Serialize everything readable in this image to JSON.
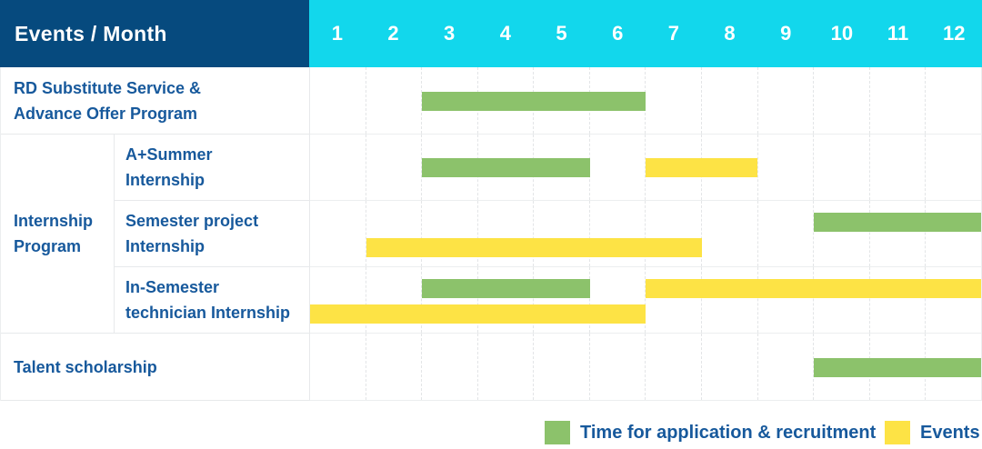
{
  "header": {
    "title": "Events / Month",
    "months": [
      "1",
      "2",
      "3",
      "4",
      "5",
      "6",
      "7",
      "8",
      "9",
      "10",
      "11",
      "12"
    ]
  },
  "colors": {
    "header_navy": "#064a7e",
    "header_cyan": "#12d7ec",
    "recruitment_green": "#8cc26b",
    "events_yellow": "#fde345",
    "label_blue": "#17599c",
    "grid_line": "#e7e9eb"
  },
  "chart_data": {
    "type": "gantt",
    "unit": "month",
    "axis": {
      "min": 1,
      "max": 12,
      "ticks": [
        1,
        2,
        3,
        4,
        5,
        6,
        7,
        8,
        9,
        10,
        11,
        12
      ]
    },
    "group_label_lines": [
      "Internship",
      "Program"
    ],
    "series": {
      "recruitment": {
        "label": "Time for application & recruitment",
        "color": "#8cc26b"
      },
      "events": {
        "label": "Events",
        "color": "#fde345"
      }
    },
    "rows": [
      {
        "group": "",
        "label": "RD Substitute Service & Advance Offer Program",
        "label_lines": [
          "RD Substitute Service &",
          "Advance Offer Program"
        ],
        "bars": [
          {
            "series": "recruitment",
            "start": 3,
            "end": 6,
            "lane": "center"
          }
        ]
      },
      {
        "group": "Internship Program",
        "label": "A+Summer Internship",
        "label_lines": [
          "A+Summer",
          "Internship"
        ],
        "bars": [
          {
            "series": "recruitment",
            "start": 3,
            "end": 5,
            "lane": "center"
          },
          {
            "series": "events",
            "start": 7,
            "end": 8,
            "lane": "center"
          }
        ]
      },
      {
        "group": "Internship Program",
        "label": "Semester project Internship",
        "label_lines": [
          "Semester project",
          "Internship"
        ],
        "bars": [
          {
            "series": "recruitment",
            "start": 10,
            "end": 12,
            "lane": "top"
          },
          {
            "series": "events",
            "start": 2,
            "end": 7,
            "lane": "bottom"
          }
        ]
      },
      {
        "group": "Internship Program",
        "label": "In-Semester technician Internship",
        "label_lines": [
          "In-Semester",
          "technician Internship"
        ],
        "bars": [
          {
            "series": "recruitment",
            "start": 3,
            "end": 5,
            "lane": "top"
          },
          {
            "series": "events",
            "start": 7,
            "end": 12,
            "lane": "top"
          },
          {
            "series": "events",
            "start": 1,
            "end": 6,
            "lane": "bottom"
          }
        ]
      },
      {
        "group": "",
        "label": "Talent scholarship",
        "label_lines": [
          "Talent scholarship"
        ],
        "bars": [
          {
            "series": "recruitment",
            "start": 10,
            "end": 12,
            "lane": "center"
          }
        ]
      }
    ]
  },
  "legend": [
    {
      "series": "recruitment",
      "label": "Time for application & recruitment",
      "color": "#8cc26b"
    },
    {
      "series": "events",
      "label": "Events",
      "color": "#fde345"
    }
  ]
}
